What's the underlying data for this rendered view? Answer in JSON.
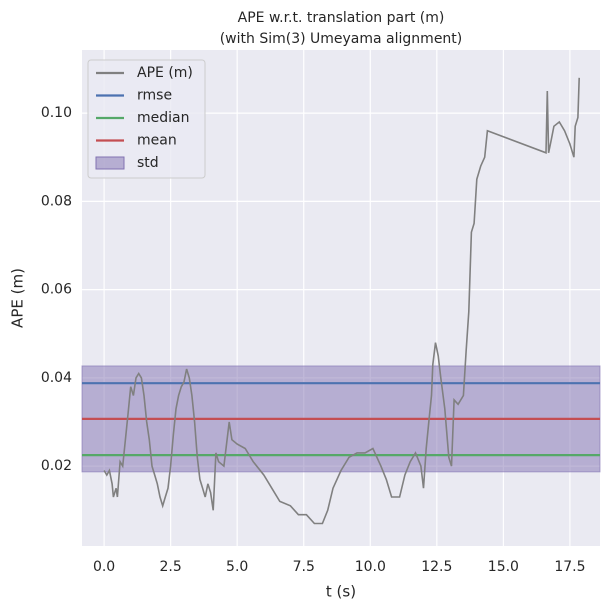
{
  "chart_data": {
    "type": "line",
    "title": "APE w.r.t. translation part (m)",
    "subtitle": "(with Sim(3) Umeyama alignment)",
    "x_label": "t (s)",
    "y_label": "APE (m)",
    "xlim": [
      -0.83,
      18.63
    ],
    "ylim": [
      0.0019,
      0.1143
    ],
    "xticks": [
      {
        "value": 0,
        "label": "0.0"
      },
      2.5,
      {
        "value": 5,
        "label": "5.0"
      },
      7.5,
      {
        "value": 10,
        "label": "10.0"
      },
      12.5,
      {
        "value": 15,
        "label": "15.0"
      },
      17.5
    ],
    "yticks": [
      0.02,
      0.04,
      0.06,
      0.08,
      {
        "value": 0.1,
        "label": "0.10"
      }
    ],
    "grid": true,
    "series": [
      {
        "name": "APE (m)",
        "color": "#808080",
        "x": [
          0.0,
          0.1,
          0.2,
          0.3,
          0.35,
          0.45,
          0.5,
          0.6,
          0.7,
          0.8,
          0.9,
          1.0,
          1.1,
          1.2,
          1.3,
          1.4,
          1.5,
          1.6,
          1.7,
          1.8,
          1.9,
          2.0,
          2.1,
          2.2,
          2.3,
          2.4,
          2.5,
          2.6,
          2.7,
          2.8,
          2.9,
          3.0,
          3.1,
          3.2,
          3.3,
          3.4,
          3.5,
          3.6,
          3.7,
          3.8,
          3.9,
          4.0,
          4.1,
          4.2,
          4.3,
          4.5,
          4.7,
          4.8,
          5.0,
          5.3,
          5.6,
          6.0,
          6.3,
          6.6,
          7.0,
          7.3,
          7.6,
          7.9,
          8.2,
          8.4,
          8.6,
          8.9,
          9.2,
          9.5,
          9.8,
          10.1,
          10.4,
          10.6,
          10.8,
          11.1,
          11.3,
          11.5,
          11.7,
          11.9,
          12.0,
          12.1,
          12.2,
          12.3,
          12.35,
          12.45,
          12.55,
          12.65,
          12.8,
          12.95,
          13.05,
          13.15,
          13.3,
          13.5,
          13.6,
          13.7,
          13.8,
          13.9,
          14.0,
          14.15,
          14.3,
          14.4,
          16.6,
          16.65,
          16.7,
          16.8,
          16.9,
          17.1,
          17.3,
          17.5,
          17.65,
          17.7,
          17.8,
          17.85
        ],
        "values": [
          0.019,
          0.018,
          0.019,
          0.016,
          0.013,
          0.015,
          0.013,
          0.021,
          0.02,
          0.026,
          0.032,
          0.038,
          0.036,
          0.04,
          0.041,
          0.04,
          0.036,
          0.03,
          0.026,
          0.02,
          0.018,
          0.016,
          0.013,
          0.011,
          0.013,
          0.015,
          0.02,
          0.027,
          0.033,
          0.036,
          0.038,
          0.039,
          0.042,
          0.04,
          0.036,
          0.03,
          0.022,
          0.017,
          0.015,
          0.013,
          0.016,
          0.014,
          0.01,
          0.023,
          0.021,
          0.02,
          0.03,
          0.026,
          0.025,
          0.024,
          0.021,
          0.018,
          0.015,
          0.012,
          0.011,
          0.009,
          0.009,
          0.007,
          0.007,
          0.01,
          0.015,
          0.019,
          0.022,
          0.023,
          0.023,
          0.024,
          0.02,
          0.017,
          0.013,
          0.013,
          0.018,
          0.021,
          0.023,
          0.02,
          0.015,
          0.024,
          0.03,
          0.036,
          0.043,
          0.048,
          0.045,
          0.04,
          0.033,
          0.022,
          0.02,
          0.035,
          0.034,
          0.036,
          0.046,
          0.055,
          0.073,
          0.075,
          0.085,
          0.088,
          0.09,
          0.096,
          0.091,
          0.105,
          0.091,
          0.094,
          0.097,
          0.098,
          0.096,
          0.093,
          0.09,
          0.097,
          0.099,
          0.108
        ]
      }
    ],
    "stats": [
      {
        "name": "rmse",
        "color": "#4c72b0",
        "value": 0.0388
      },
      {
        "name": "median",
        "color": "#55a868",
        "value": 0.0225
      },
      {
        "name": "mean",
        "color": "#c44e52",
        "value": 0.0307
      },
      {
        "name": "std",
        "color": "#8172b2",
        "value": 0.012
      }
    ]
  }
}
